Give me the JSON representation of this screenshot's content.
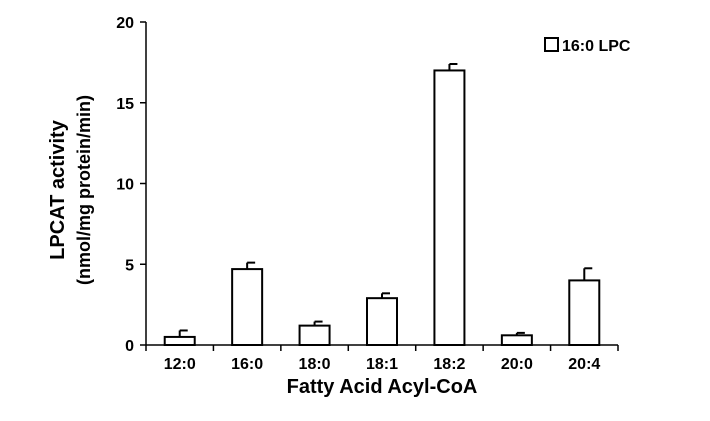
{
  "chart_data": {
    "type": "bar",
    "title": "",
    "xlabel": "Fatty Acid Acyl-CoA",
    "ylabel_lines": [
      "LPCAT activity",
      "(nmol/mg protein/min)"
    ],
    "categories": [
      "12:0",
      "16:0",
      "18:0",
      "18:1",
      "18:2",
      "20:0",
      "20:4"
    ],
    "series": [
      {
        "name": "16:0 LPC",
        "values": [
          0.5,
          4.7,
          1.2,
          2.9,
          17.0,
          0.6,
          4.0
        ],
        "errors": [
          0.4,
          0.4,
          0.25,
          0.3,
          0.4,
          0.15,
          0.75
        ]
      }
    ],
    "ylim": [
      0,
      20
    ],
    "yticks": [
      "0",
      "5",
      "10",
      "15",
      "20"
    ],
    "grid": false,
    "legend_position": "top-right",
    "colors": {
      "bar_fill": "#ffffff",
      "bar_stroke": "#000000",
      "axis": "#000000"
    }
  }
}
